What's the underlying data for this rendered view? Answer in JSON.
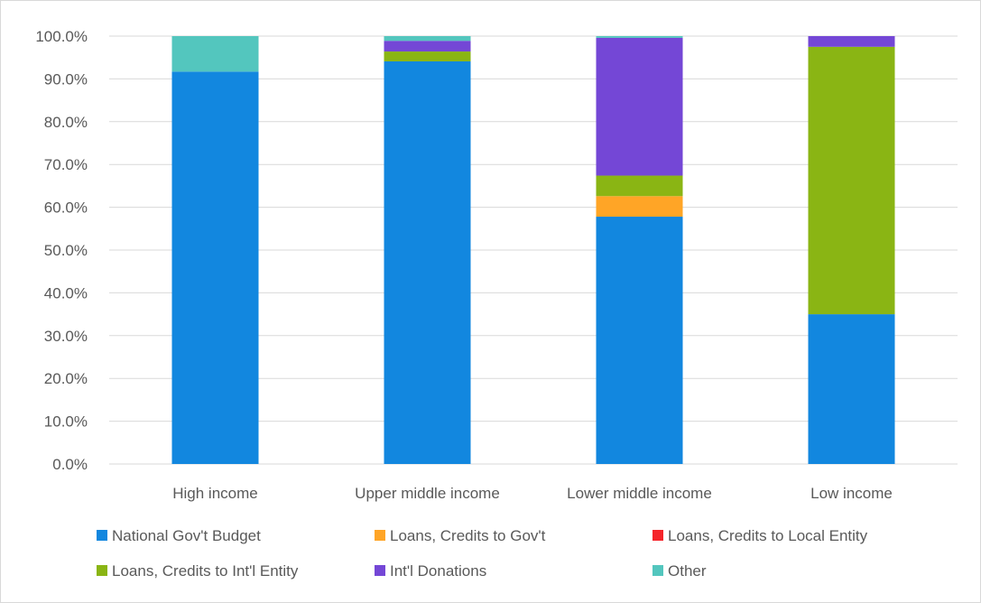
{
  "chart_data": {
    "type": "bar",
    "stacked": true,
    "title": "",
    "xlabel": "",
    "ylabel": "",
    "ylim": [
      0,
      100
    ],
    "y_tick_labels": [
      "0.0%",
      "10.0%",
      "20.0%",
      "30.0%",
      "40.0%",
      "50.0%",
      "60.0%",
      "70.0%",
      "80.0%",
      "90.0%",
      "100.0%"
    ],
    "grid": true,
    "legend_position": "bottom",
    "categories": [
      "High income",
      "Upper middle income",
      "Lower middle income",
      "Low income"
    ],
    "series": [
      {
        "name": "National Gov't Budget",
        "color": "#1287DF",
        "values": [
          91.7,
          94.1,
          57.8,
          35.0
        ]
      },
      {
        "name": "Loans, Credits to Gov't",
        "color": "#FFA526",
        "values": [
          0,
          0,
          4.8,
          0
        ]
      },
      {
        "name": "Loans, Credits to Local Entity",
        "color": "#F5242A",
        "values": [
          0,
          0,
          0,
          0
        ]
      },
      {
        "name": "Loans, Credits to Int'l Entity",
        "color": "#8AB514",
        "values": [
          0,
          2.3,
          4.8,
          62.5
        ]
      },
      {
        "name": "Int'l Donations",
        "color": "#7447D6",
        "values": [
          0,
          2.5,
          32.2,
          2.5
        ]
      },
      {
        "name": "Other",
        "color": "#53C6BE",
        "values": [
          8.3,
          1.1,
          0.4,
          0
        ]
      }
    ]
  }
}
